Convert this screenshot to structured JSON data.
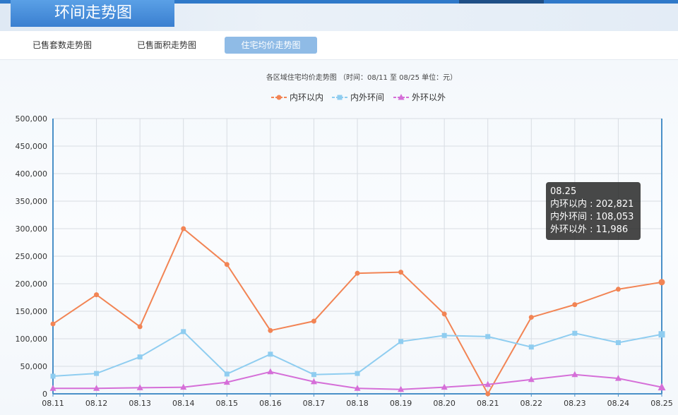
{
  "header": {
    "title": "环间走势图"
  },
  "tabs": [
    {
      "label": "已售套数走势图",
      "active": false
    },
    {
      "label": "已售面积走势图",
      "active": false
    },
    {
      "label": "住宅均价走势图",
      "active": true
    }
  ],
  "chart_data": {
    "type": "line",
    "title": "各区域住宅均价走势图 （时间：08/11 至 08/25   单位：元）",
    "categories": [
      "08.11",
      "08.12",
      "08.13",
      "08.14",
      "08.15",
      "08.16",
      "08.17",
      "08.18",
      "08.19",
      "08.20",
      "08.21",
      "08.22",
      "08.23",
      "08.24",
      "08.25"
    ],
    "ylim": [
      0,
      500000
    ],
    "yticks": [
      0,
      50000,
      100000,
      150000,
      200000,
      250000,
      300000,
      350000,
      400000,
      450000,
      500000
    ],
    "ytick_labels": [
      "0",
      "50,000",
      "100,000",
      "150,000",
      "200,000",
      "250,000",
      "300,000",
      "350,000",
      "400,000",
      "450,000",
      "500,000"
    ],
    "grid": true,
    "legend_position": "top-center",
    "series": [
      {
        "name": "内环以内",
        "color": "#f28454",
        "marker": "circle",
        "values": [
          127000,
          180000,
          122000,
          300000,
          235000,
          115000,
          132000,
          219000,
          221000,
          145000,
          0,
          139000,
          162000,
          190000,
          202821
        ]
      },
      {
        "name": "内外环间",
        "color": "#8fcdf0",
        "marker": "square",
        "values": [
          32000,
          37000,
          67000,
          113000,
          36000,
          72000,
          35000,
          37000,
          95000,
          106000,
          104000,
          85000,
          110000,
          93000,
          108053
        ]
      },
      {
        "name": "外环以外",
        "color": "#d56fd8",
        "marker": "triangle",
        "values": [
          10000,
          10000,
          11000,
          12000,
          21000,
          40000,
          22000,
          10000,
          8000,
          12000,
          17000,
          26000,
          35000,
          28000,
          11986
        ]
      }
    ]
  },
  "tooltip": {
    "date": "08.25",
    "lines": [
      "内环以内 : 202,821",
      "内外环间 : 108,053",
      "外环以外 : 11,986"
    ]
  }
}
